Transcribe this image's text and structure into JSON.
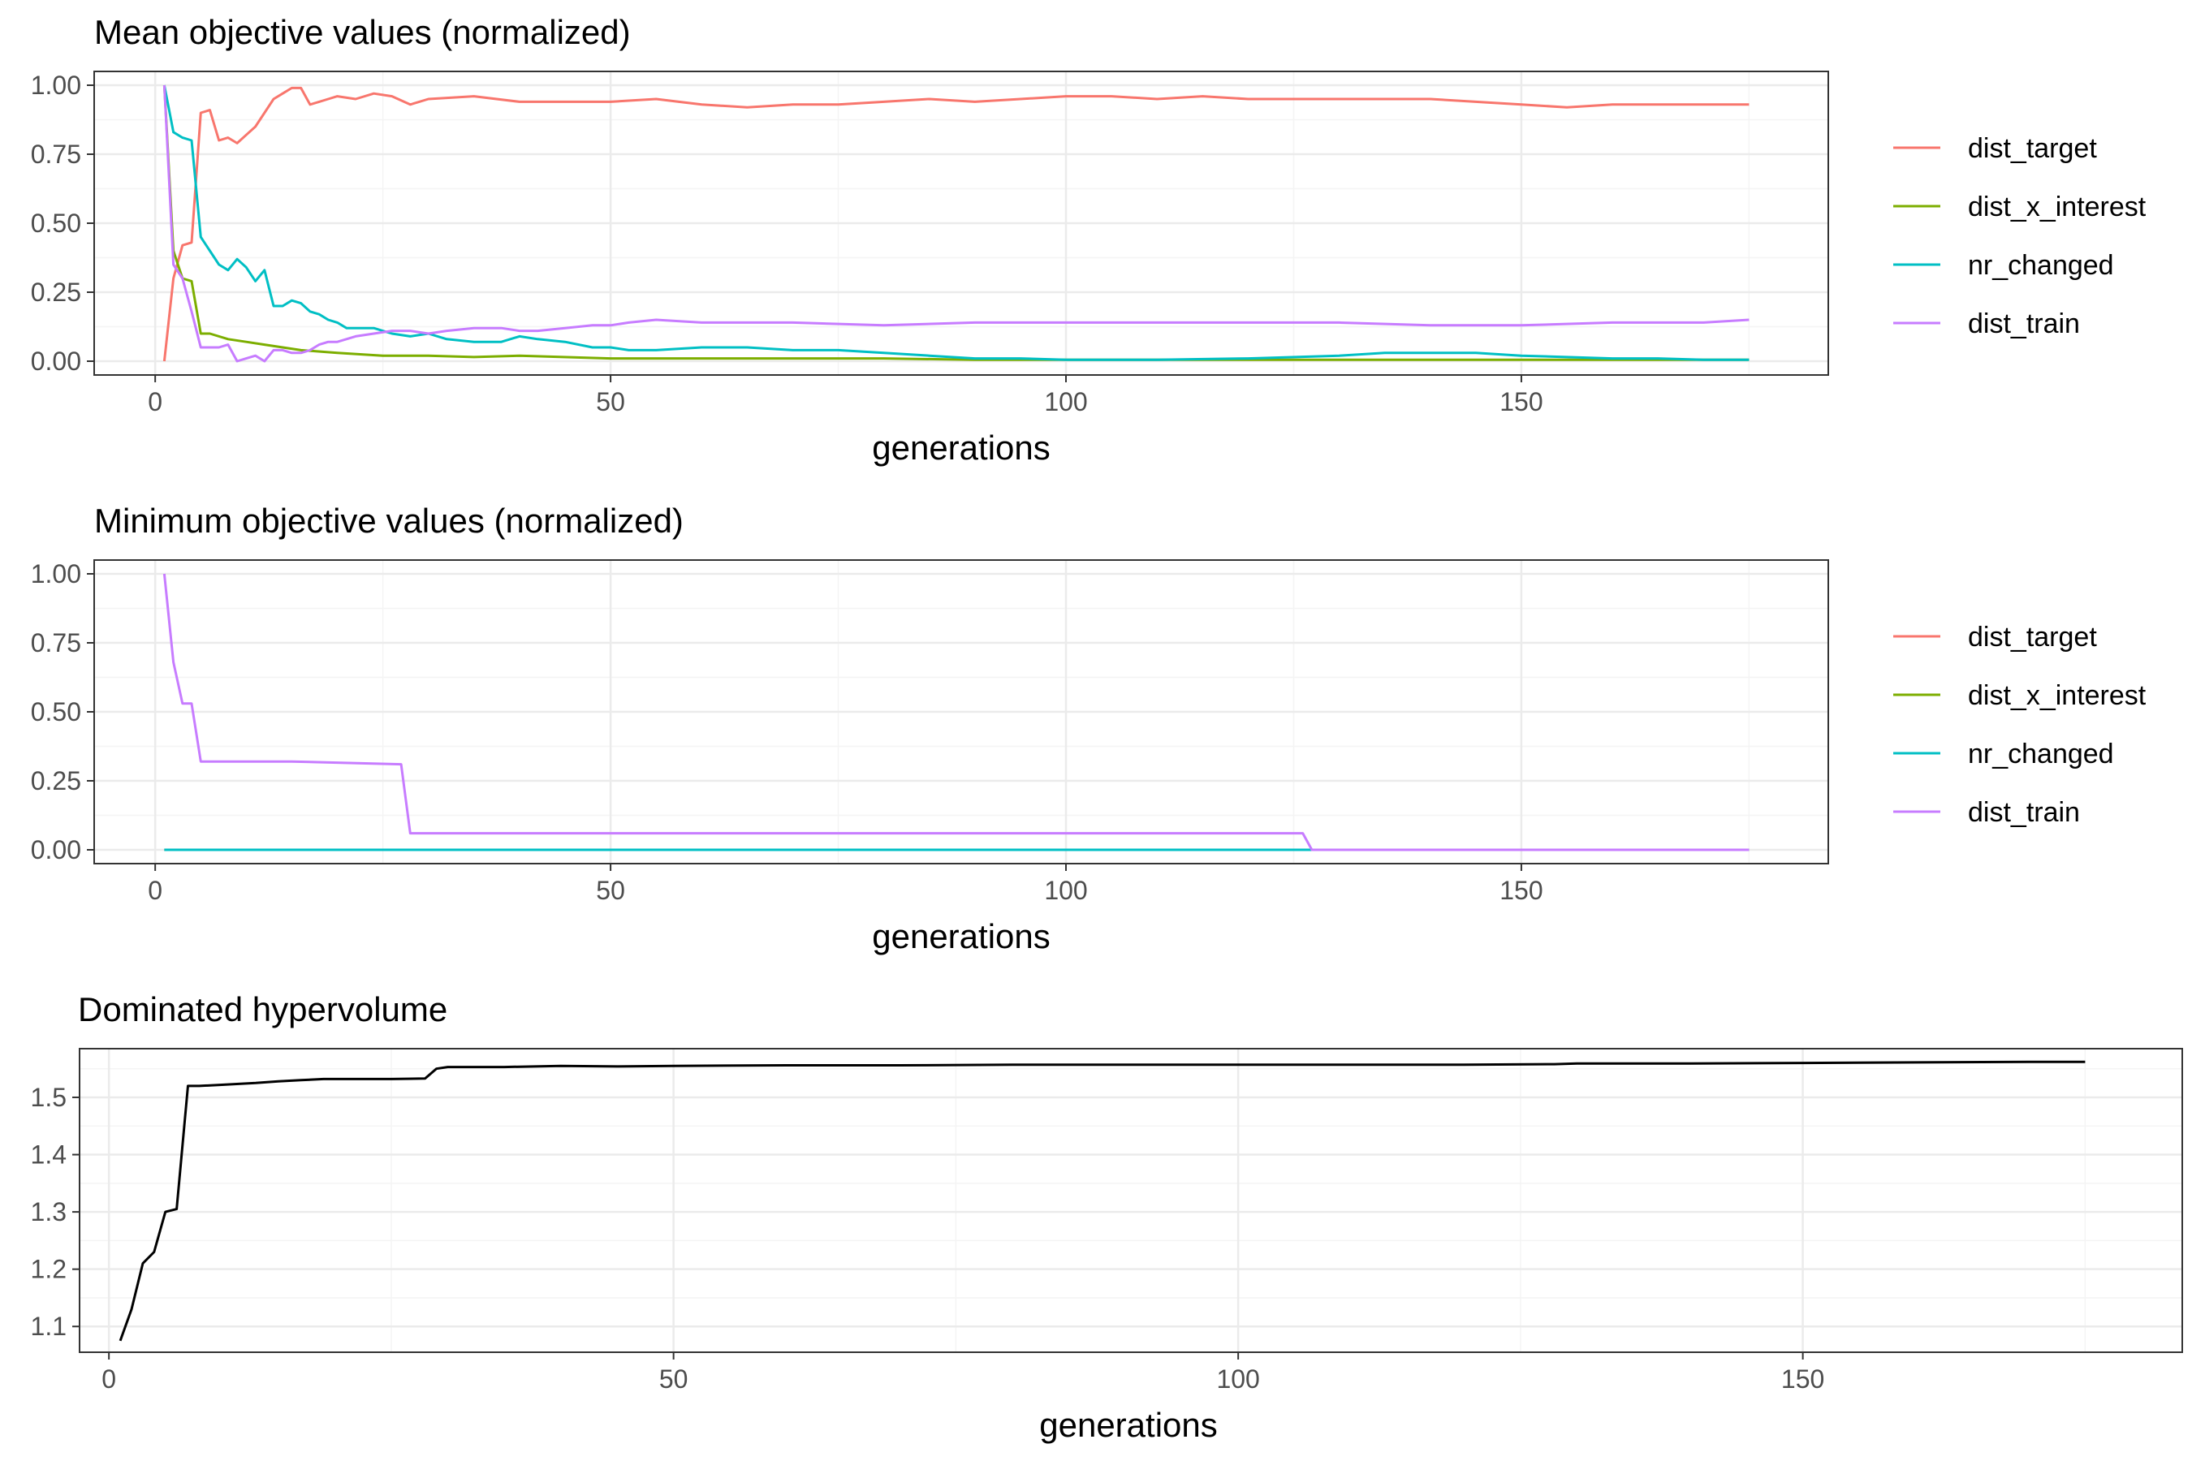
{
  "colors": {
    "dist_target": "#F8766D",
    "dist_x_interest": "#7CAE00",
    "nr_changed": "#00BFC4",
    "dist_train": "#C77CFF",
    "hypervolume": "#000000",
    "grid_major": "#EBEBEB",
    "grid_minor": "#F4F4F4",
    "panel_border": "#333333",
    "tick_text": "#4D4D4D"
  },
  "chart_data": [
    {
      "type": "line",
      "title": "Mean objective values (normalized)",
      "xlabel": "generations",
      "ylabel": "",
      "xlim": [
        -6.7,
        183.7
      ],
      "ylim": [
        -0.05,
        1.05
      ],
      "xticks": [
        0,
        50,
        100,
        150
      ],
      "yticks": [
        0.0,
        0.25,
        0.5,
        0.75,
        1.0
      ],
      "ytick_labels": [
        "0.00",
        "0.25",
        "0.50",
        "0.75",
        "1.00"
      ],
      "grid": true,
      "legend_position": "right",
      "series": [
        {
          "name": "dist_target",
          "color_key": "dist_target",
          "x": [
            1,
            2,
            3,
            4,
            5,
            6,
            7,
            8,
            9,
            10,
            11,
            12,
            13,
            14,
            15,
            16,
            17,
            18,
            19,
            20,
            22,
            24,
            26,
            28,
            30,
            35,
            40,
            45,
            50,
            55,
            60,
            65,
            70,
            75,
            80,
            85,
            90,
            95,
            100,
            105,
            110,
            115,
            120,
            125,
            130,
            135,
            140,
            145,
            150,
            155,
            160,
            165,
            170,
            175
          ],
          "y": [
            0.0,
            0.3,
            0.42,
            0.43,
            0.9,
            0.91,
            0.8,
            0.81,
            0.79,
            0.82,
            0.85,
            0.9,
            0.95,
            0.97,
            0.99,
            0.99,
            0.93,
            0.94,
            0.95,
            0.96,
            0.95,
            0.97,
            0.96,
            0.93,
            0.95,
            0.96,
            0.94,
            0.94,
            0.94,
            0.95,
            0.93,
            0.92,
            0.93,
            0.93,
            0.94,
            0.95,
            0.94,
            0.95,
            0.96,
            0.96,
            0.95,
            0.96,
            0.95,
            0.95,
            0.95,
            0.95,
            0.95,
            0.94,
            0.93,
            0.92,
            0.93,
            0.93,
            0.93,
            0.93
          ]
        },
        {
          "name": "dist_x_interest",
          "color_key": "dist_x_interest",
          "x": [
            1,
            2,
            3,
            4,
            5,
            6,
            8,
            10,
            12,
            14,
            16,
            20,
            25,
            30,
            35,
            40,
            50,
            60,
            70,
            80,
            90,
            100,
            110,
            120,
            130,
            140,
            150,
            160,
            170,
            175
          ],
          "y": [
            1.0,
            0.4,
            0.3,
            0.29,
            0.1,
            0.1,
            0.08,
            0.07,
            0.06,
            0.05,
            0.04,
            0.03,
            0.02,
            0.02,
            0.015,
            0.02,
            0.01,
            0.01,
            0.01,
            0.01,
            0.005,
            0.005,
            0.005,
            0.005,
            0.005,
            0.005,
            0.005,
            0.005,
            0.005,
            0.005
          ]
        },
        {
          "name": "nr_changed",
          "color_key": "nr_changed",
          "x": [
            1,
            2,
            3,
            4,
            5,
            6,
            7,
            8,
            9,
            10,
            11,
            12,
            13,
            14,
            15,
            16,
            17,
            18,
            19,
            20,
            21,
            22,
            24,
            26,
            28,
            30,
            32,
            35,
            38,
            40,
            42,
            45,
            48,
            50,
            52,
            55,
            60,
            65,
            70,
            75,
            80,
            85,
            90,
            95,
            100,
            110,
            120,
            130,
            135,
            140,
            145,
            150,
            160,
            165,
            170,
            175
          ],
          "y": [
            1.0,
            0.83,
            0.81,
            0.8,
            0.45,
            0.4,
            0.35,
            0.33,
            0.37,
            0.34,
            0.29,
            0.33,
            0.2,
            0.2,
            0.22,
            0.21,
            0.18,
            0.17,
            0.15,
            0.14,
            0.12,
            0.12,
            0.12,
            0.1,
            0.09,
            0.1,
            0.08,
            0.07,
            0.07,
            0.09,
            0.08,
            0.07,
            0.05,
            0.05,
            0.04,
            0.04,
            0.05,
            0.05,
            0.04,
            0.04,
            0.03,
            0.02,
            0.01,
            0.01,
            0.005,
            0.005,
            0.01,
            0.02,
            0.03,
            0.03,
            0.03,
            0.02,
            0.01,
            0.01,
            0.005,
            0.005
          ]
        },
        {
          "name": "dist_train",
          "color_key": "dist_train",
          "x": [
            1,
            2,
            3,
            4,
            5,
            6,
            7,
            8,
            9,
            10,
            11,
            12,
            13,
            14,
            15,
            16,
            17,
            18,
            19,
            20,
            22,
            24,
            26,
            28,
            30,
            32,
            35,
            38,
            40,
            42,
            45,
            48,
            50,
            52,
            55,
            60,
            70,
            80,
            90,
            100,
            110,
            120,
            130,
            140,
            150,
            160,
            170,
            175
          ],
          "y": [
            1.0,
            0.35,
            0.3,
            0.18,
            0.05,
            0.05,
            0.05,
            0.06,
            0.0,
            0.01,
            0.02,
            0.0,
            0.04,
            0.04,
            0.03,
            0.03,
            0.04,
            0.06,
            0.07,
            0.07,
            0.09,
            0.1,
            0.11,
            0.11,
            0.1,
            0.11,
            0.12,
            0.12,
            0.11,
            0.11,
            0.12,
            0.13,
            0.13,
            0.14,
            0.15,
            0.14,
            0.14,
            0.13,
            0.14,
            0.14,
            0.14,
            0.14,
            0.14,
            0.13,
            0.13,
            0.14,
            0.14,
            0.15
          ]
        }
      ]
    },
    {
      "type": "line",
      "title": "Minimum objective values (normalized)",
      "xlabel": "generations",
      "ylabel": "",
      "xlim": [
        -6.7,
        183.7
      ],
      "ylim": [
        -0.05,
        1.05
      ],
      "xticks": [
        0,
        50,
        100,
        150
      ],
      "yticks": [
        0.0,
        0.25,
        0.5,
        0.75,
        1.0
      ],
      "ytick_labels": [
        "0.00",
        "0.25",
        "0.50",
        "0.75",
        "1.00"
      ],
      "grid": true,
      "legend_position": "right",
      "series": [
        {
          "name": "dist_target",
          "color_key": "dist_target",
          "x": [
            1,
            175
          ],
          "y": [
            0.0,
            0.0
          ]
        },
        {
          "name": "dist_x_interest",
          "color_key": "dist_x_interest",
          "x": [
            1,
            175
          ],
          "y": [
            0.0,
            0.0
          ]
        },
        {
          "name": "nr_changed",
          "color_key": "nr_changed",
          "x": [
            1,
            175
          ],
          "y": [
            0.0,
            0.0
          ]
        },
        {
          "name": "dist_train",
          "color_key": "dist_train",
          "x": [
            1,
            2,
            3,
            4,
            5,
            15,
            27,
            28,
            126,
            127,
            175
          ],
          "y": [
            1.0,
            0.68,
            0.53,
            0.53,
            0.32,
            0.32,
            0.31,
            0.06,
            0.06,
            0.0,
            0.0
          ]
        }
      ]
    },
    {
      "type": "line",
      "title": "Dominated hypervolume",
      "xlabel": "generations",
      "ylabel": "",
      "xlim": [
        -2.6,
        183.6
      ],
      "ylim": [
        1.055,
        1.585
      ],
      "xticks": [
        0,
        50,
        100,
        150
      ],
      "yticks": [
        1.1,
        1.2,
        1.3,
        1.4,
        1.5
      ],
      "ytick_labels": [
        "1.1",
        "1.2",
        "1.3",
        "1.4",
        "1.5"
      ],
      "grid": true,
      "legend_position": "none",
      "series": [
        {
          "color_key": "hypervolume",
          "x": [
            1,
            2,
            3,
            4,
            5,
            6,
            7,
            8,
            10,
            13,
            15,
            17,
            19,
            21,
            25,
            28,
            29,
            30,
            35,
            40,
            45,
            50,
            60,
            70,
            80,
            90,
            100,
            110,
            120,
            128,
            130,
            140,
            150,
            160,
            170,
            175
          ],
          "y": [
            1.075,
            1.13,
            1.21,
            1.23,
            1.3,
            1.305,
            1.52,
            1.52,
            1.522,
            1.525,
            1.528,
            1.53,
            1.532,
            1.532,
            1.532,
            1.533,
            1.55,
            1.553,
            1.553,
            1.555,
            1.554,
            1.555,
            1.556,
            1.556,
            1.557,
            1.557,
            1.557,
            1.557,
            1.557,
            1.558,
            1.559,
            1.559,
            1.56,
            1.561,
            1.562,
            1.562
          ]
        }
      ]
    }
  ]
}
